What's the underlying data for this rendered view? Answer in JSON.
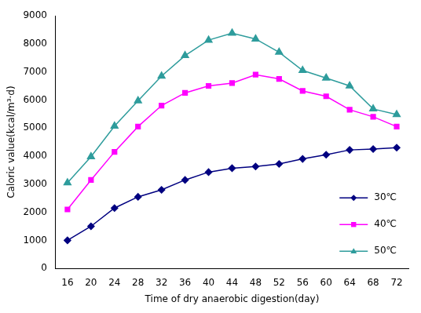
{
  "chart_data": {
    "type": "line",
    "x_label": "Time of dry anaerobic digestion(day)",
    "y_label": "Caloric value(kcal/m³·d)",
    "categories": [
      "16",
      "20",
      "24",
      "28",
      "32",
      "36",
      "40",
      "44",
      "48",
      "52",
      "56",
      "60",
      "64",
      "68",
      "72"
    ],
    "series": [
      {
        "name": "30℃",
        "color": "#000080",
        "marker": "diamond",
        "values": [
          1000,
          1500,
          2150,
          2550,
          2800,
          3150,
          3430,
          3570,
          3630,
          3720,
          3900,
          4050,
          4220,
          4250,
          4300
        ]
      },
      {
        "name": "40℃",
        "color": "#ff00ff",
        "marker": "square",
        "values": [
          2100,
          3150,
          4150,
          5050,
          5800,
          6250,
          6500,
          6600,
          6900,
          6750,
          6320,
          6130,
          5650,
          5400,
          5050
        ]
      },
      {
        "name": "50℃",
        "color": "#2e9c9c",
        "marker": "triangle",
        "values": [
          3050,
          3980,
          5070,
          5970,
          6850,
          7580,
          8130,
          8380,
          8170,
          7700,
          7050,
          6780,
          6500,
          5680,
          5480
        ]
      }
    ],
    "ylim": [
      0,
      9000
    ],
    "yticks": [
      0,
      1000,
      2000,
      3000,
      4000,
      5000,
      6000,
      7000,
      8000,
      9000
    ],
    "grid": false,
    "legend": "lower right"
  }
}
